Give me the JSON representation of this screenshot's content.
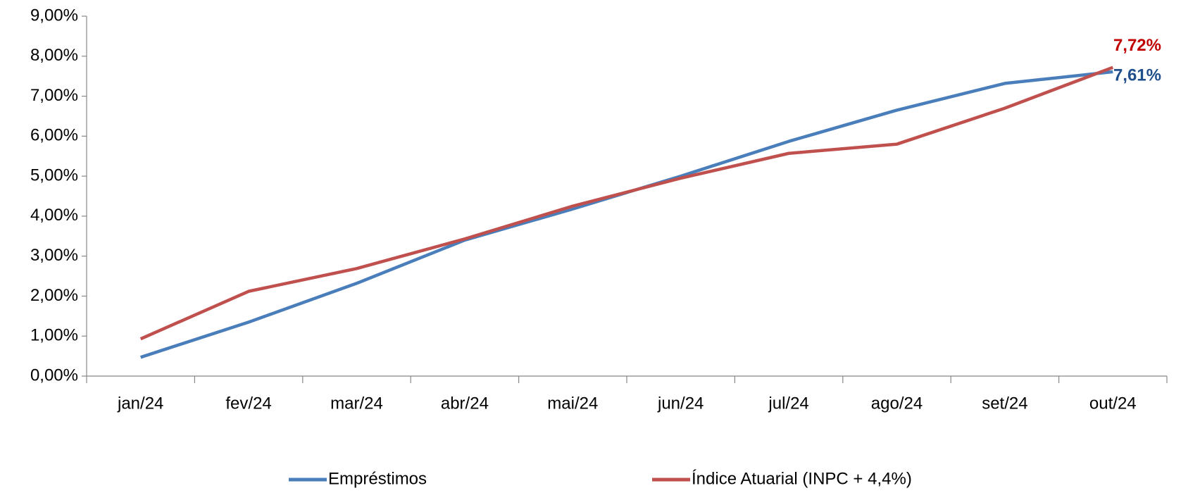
{
  "chart_data": {
    "type": "line",
    "categories": [
      "jan/24",
      "fev/24",
      "mar/24",
      "abr/24",
      "mai/24",
      "jun/24",
      "jul/24",
      "ago/24",
      "set/24",
      "out/24"
    ],
    "series": [
      {
        "name": "Empréstimos",
        "color": "#4a7ebb",
        "values": [
          0.47,
          1.35,
          2.32,
          3.4,
          4.18,
          5.0,
          5.87,
          6.65,
          7.32,
          7.61
        ],
        "value_labels": [
          null,
          null,
          null,
          null,
          null,
          null,
          null,
          null,
          null,
          "7,61%"
        ],
        "label_color": "#1f4e8c"
      },
      {
        "name": "Índice Atuarial (INPC + 4,4%)",
        "color": "#c0504d",
        "values": [
          0.93,
          2.12,
          2.69,
          3.43,
          4.25,
          4.95,
          5.57,
          5.8,
          6.7,
          7.72
        ],
        "value_labels": [
          null,
          null,
          null,
          null,
          null,
          null,
          null,
          null,
          null,
          "7,72%"
        ],
        "label_color": "#c00000"
      }
    ],
    "ylim": [
      0,
      9
    ],
    "yticks": [
      {
        "value": 0,
        "label": "0,00%"
      },
      {
        "value": 1,
        "label": "1,00%"
      },
      {
        "value": 2,
        "label": "2,00%"
      },
      {
        "value": 3,
        "label": "3,00%"
      },
      {
        "value": 4,
        "label": "4,00%"
      },
      {
        "value": 5,
        "label": "5,00%"
      },
      {
        "value": 6,
        "label": "6,00%"
      },
      {
        "value": 7,
        "label": "7,00%"
      },
      {
        "value": 8,
        "label": "8,00%"
      },
      {
        "value": 9,
        "label": "9,00%"
      }
    ],
    "grid": false,
    "legend": "bottom"
  }
}
